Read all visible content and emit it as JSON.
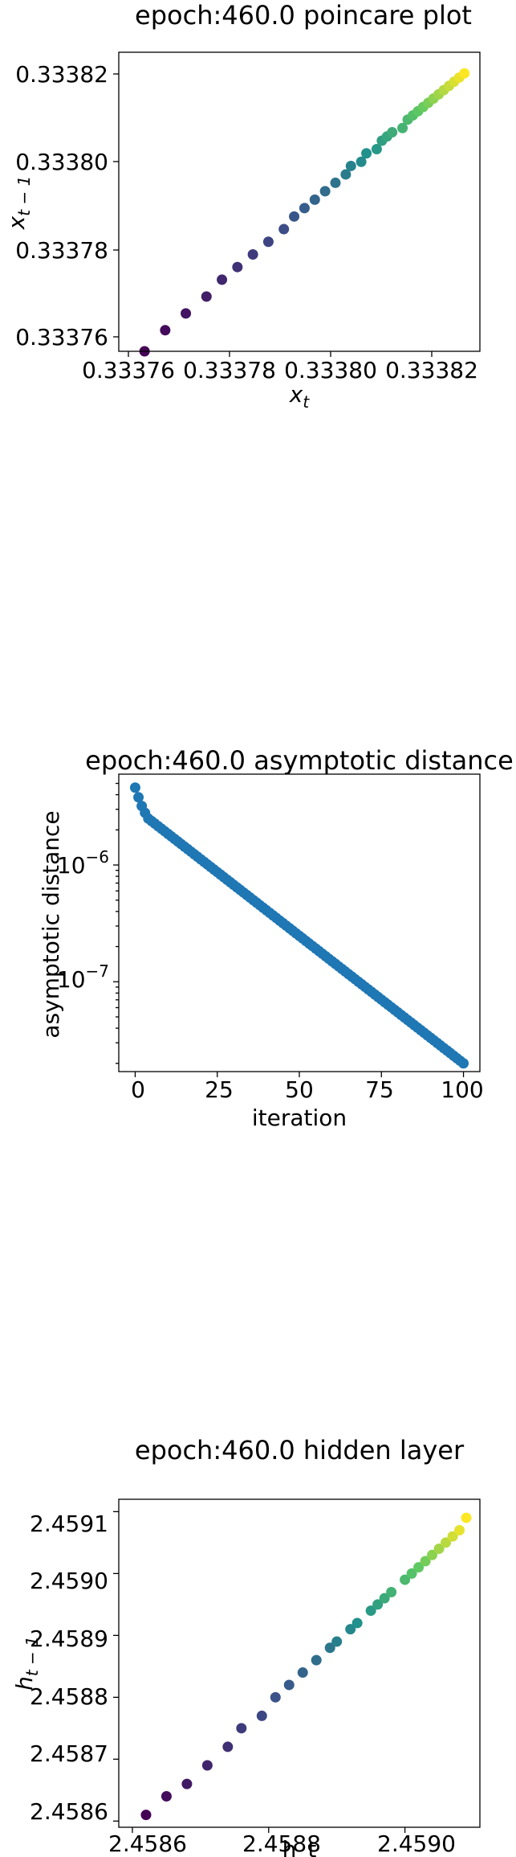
{
  "chart_data": [
    {
      "type": "scatter",
      "title": "epoch:460.0 poincare plot",
      "xlabel": "x_t",
      "ylabel": "x_{t-1}",
      "xlim": [
        0.333755,
        0.333825
      ],
      "ylim": [
        0.333755,
        0.333826
      ],
      "xticks": [
        "0.33376",
        "0.33378",
        "0.33380",
        "0.33382"
      ],
      "yticks": [
        "0.33376",
        "0.33378",
        "0.33380",
        "0.33382"
      ],
      "colormap": "viridis",
      "x": [
        0.33376,
        0.333764,
        0.333768,
        0.333772,
        0.333775,
        0.333778,
        0.333781,
        0.333784,
        0.333787,
        0.333789,
        0.333791,
        0.333793,
        0.333795,
        0.333797,
        0.333799,
        0.3338,
        0.333802,
        0.333803,
        0.333805,
        0.333806,
        0.333807,
        0.333808,
        0.33381,
        0.333811,
        0.333812,
        0.333813,
        0.333814,
        0.333815,
        0.333816,
        0.333817,
        0.333818,
        0.333819,
        0.33382,
        0.333821,
        0.333822
      ],
      "y": [
        0.333755,
        0.33376,
        0.333764,
        0.333768,
        0.333772,
        0.333775,
        0.333778,
        0.333781,
        0.333784,
        0.333787,
        0.333789,
        0.333791,
        0.333793,
        0.333795,
        0.333797,
        0.333799,
        0.3338,
        0.333802,
        0.333803,
        0.333805,
        0.333806,
        0.333807,
        0.333808,
        0.33381,
        0.333811,
        0.333812,
        0.333813,
        0.333814,
        0.333815,
        0.333816,
        0.333817,
        0.333818,
        0.333819,
        0.33382,
        0.333821
      ],
      "grid": false
    },
    {
      "type": "scatter",
      "title": "epoch:460.0 asymptotic distance",
      "xlabel": "iteration",
      "ylabel": "asymptotic distance",
      "yscale": "log",
      "xlim": [
        -5,
        105
      ],
      "ylim": [
        1.7e-08,
        6e-06
      ],
      "xticks": [
        "0",
        "25",
        "50",
        "75",
        "100"
      ],
      "xtick_values": [
        0,
        25,
        50,
        75,
        100
      ],
      "yticks": [
        {
          "value": 1e-06,
          "base": "10",
          "exp": "−6"
        },
        {
          "value": 1e-07,
          "base": "10",
          "exp": "−7"
        }
      ],
      "color": "#1f77b4",
      "x_range": [
        0,
        100
      ],
      "y_start_values": [
        4.6e-06,
        3.8e-06,
        3.2e-06,
        2.8e-06,
        2.5e-06
      ],
      "y_end_value": 2e-08,
      "grid": false
    },
    {
      "type": "scatter",
      "title": "epoch:460.0 hidden layer",
      "xlabel": "h_t",
      "ylabel": "h_{t-1}",
      "xlim": [
        2.45858,
        2.45911
      ],
      "ylim": [
        2.45859,
        2.45912
      ],
      "xticks": [
        "2.4586",
        "2.4588",
        "2.4590"
      ],
      "xtick_values": [
        2.4586,
        2.4588,
        2.459
      ],
      "yticks": [
        "2.4586",
        "2.4587",
        "2.4588",
        "2.4589",
        "2.4590",
        "2.4591"
      ],
      "ytick_values": [
        2.4586,
        2.4587,
        2.4588,
        2.4589,
        2.459,
        2.4591
      ],
      "colormap": "viridis",
      "x": [
        2.45862,
        2.45865,
        2.45868,
        2.45871,
        2.45874,
        2.45876,
        2.45879,
        2.45881,
        2.45883,
        2.45885,
        2.45887,
        2.45889,
        2.4589,
        2.45892,
        2.45893,
        2.45895,
        2.45896,
        2.45897,
        2.45898,
        2.459,
        2.45901,
        2.45902,
        2.45903,
        2.45904,
        2.45905,
        2.45906,
        2.45907,
        2.45908,
        2.45909
      ],
      "y": [
        2.45861,
        2.45864,
        2.45866,
        2.45869,
        2.45872,
        2.45875,
        2.45877,
        2.4588,
        2.45882,
        2.45884,
        2.45886,
        2.45888,
        2.45889,
        2.45891,
        2.45892,
        2.45894,
        2.45895,
        2.45896,
        2.45897,
        2.45899,
        2.459,
        2.45901,
        2.45902,
        2.45903,
        2.45904,
        2.45905,
        2.45906,
        2.45907,
        2.45909
      ],
      "grid": false
    }
  ]
}
